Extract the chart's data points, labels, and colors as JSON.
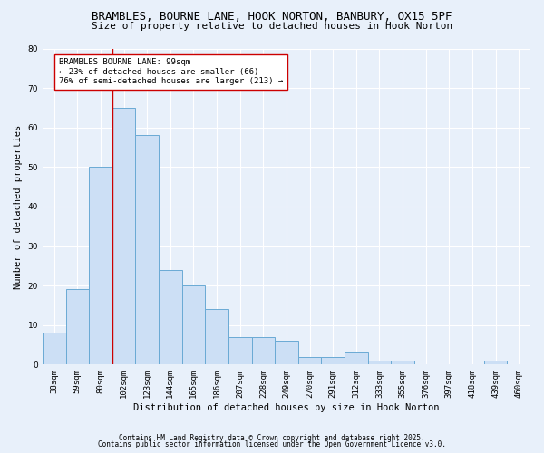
{
  "title1": "BRAMBLES, BOURNE LANE, HOOK NORTON, BANBURY, OX15 5PF",
  "title2": "Size of property relative to detached houses in Hook Norton",
  "xlabel": "Distribution of detached houses by size in Hook Norton",
  "ylabel": "Number of detached properties",
  "categories": [
    "38sqm",
    "59sqm",
    "80sqm",
    "102sqm",
    "123sqm",
    "144sqm",
    "165sqm",
    "186sqm",
    "207sqm",
    "228sqm",
    "249sqm",
    "270sqm",
    "291sqm",
    "312sqm",
    "333sqm",
    "355sqm",
    "376sqm",
    "397sqm",
    "418sqm",
    "439sqm",
    "460sqm"
  ],
  "values": [
    8,
    19,
    50,
    65,
    58,
    24,
    20,
    14,
    7,
    7,
    6,
    2,
    2,
    3,
    1,
    1,
    0,
    0,
    0,
    1,
    0
  ],
  "bar_color": "#ccdff5",
  "bar_edge_color": "#6aaad4",
  "ylim": [
    0,
    80
  ],
  "yticks": [
    0,
    10,
    20,
    30,
    40,
    50,
    60,
    70,
    80
  ],
  "vline_x": 2.5,
  "vline_color": "#cc0000",
  "annotation_text": "BRAMBLES BOURNE LANE: 99sqm\n← 23% of detached houses are smaller (66)\n76% of semi-detached houses are larger (213) →",
  "footer1": "Contains HM Land Registry data © Crown copyright and database right 2025.",
  "footer2": "Contains public sector information licensed under the Open Government Licence v3.0.",
  "bg_color": "#e8f0fa",
  "grid_color": "#ffffff",
  "title_fontsize": 9,
  "subtitle_fontsize": 8,
  "xlabel_fontsize": 7.5,
  "ylabel_fontsize": 7.5,
  "tick_fontsize": 6.5,
  "annotation_fontsize": 6.5,
  "footer_fontsize": 5.5
}
